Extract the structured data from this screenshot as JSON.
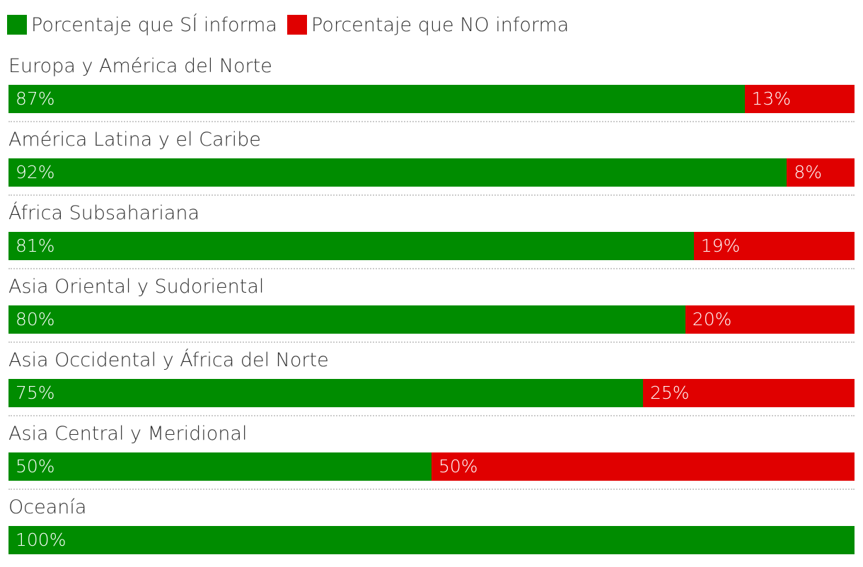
{
  "chart_data": {
    "type": "bar",
    "orientation": "horizontal",
    "stacked": true,
    "normalized": "100%",
    "title": "",
    "xlabel": "",
    "ylabel": "",
    "xlim": [
      0,
      100
    ],
    "grid": false,
    "legend_position": "top-left",
    "categories": [
      "Europa y América del Norte",
      "América Latina y el Caribe",
      "África Subsahariana",
      "Asia Oriental y Sudoriental",
      "Asia Occidental y África del Norte",
      "Asia Central y Meridional",
      "Oceanía"
    ],
    "series": [
      {
        "name": "Porcentaje que SÍ informa",
        "color": "#008c00",
        "values": [
          87,
          92,
          81,
          80,
          75,
          50,
          100
        ],
        "labels": [
          "87%",
          "92%",
          "81%",
          "80%",
          "75%",
          "50%",
          "100%"
        ]
      },
      {
        "name": "Porcentaje que NO informa",
        "color": "#e00000",
        "values": [
          13,
          8,
          19,
          20,
          25,
          50,
          0
        ],
        "labels": [
          "13%",
          "8%",
          "19%",
          "20%",
          "25%",
          "50%",
          ""
        ]
      }
    ]
  }
}
